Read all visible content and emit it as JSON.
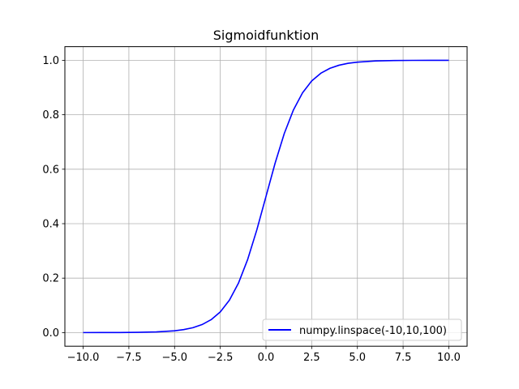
{
  "chart_data": {
    "type": "line",
    "title": "Sigmoidfunktion",
    "xlabel": "",
    "ylabel": "",
    "xlim": [
      -11.0,
      11.0
    ],
    "ylim": [
      -0.05,
      1.05
    ],
    "xticks": [
      -10.0,
      -7.5,
      -5.0,
      -2.5,
      0.0,
      2.5,
      5.0,
      7.5,
      10.0
    ],
    "xtick_labels": [
      "−10.0",
      "−7.5",
      "−5.0",
      "−2.5",
      "0.0",
      "2.5",
      "5.0",
      "7.5",
      "10.0"
    ],
    "yticks": [
      0.0,
      0.2,
      0.4,
      0.6,
      0.8,
      1.0
    ],
    "ytick_labels": [
      "0.0",
      "0.2",
      "0.4",
      "0.6",
      "0.8",
      "1.0"
    ],
    "grid": true,
    "legend_position": "lower-right",
    "series": [
      {
        "name": "numpy.linspace(-10,10,100)",
        "color": "#0000ff",
        "x": [
          -10,
          -9,
          -8,
          -7,
          -6,
          -5,
          -4.5,
          -4,
          -3.5,
          -3,
          -2.5,
          -2,
          -1.5,
          -1,
          -0.5,
          0,
          0.5,
          1,
          1.5,
          2,
          2.5,
          3,
          3.5,
          4,
          4.5,
          5,
          6,
          7,
          8,
          9,
          10
        ],
        "y": [
          5e-05,
          0.00012,
          0.00034,
          0.00091,
          0.00247,
          0.00669,
          0.01099,
          0.01799,
          0.02931,
          0.04743,
          0.07586,
          0.1192,
          0.18243,
          0.26894,
          0.37754,
          0.5,
          0.62246,
          0.73106,
          0.81757,
          0.8808,
          0.92414,
          0.95257,
          0.97069,
          0.98201,
          0.98901,
          0.99331,
          0.99753,
          0.99909,
          0.99966,
          0.99988,
          0.99995
        ]
      }
    ]
  }
}
